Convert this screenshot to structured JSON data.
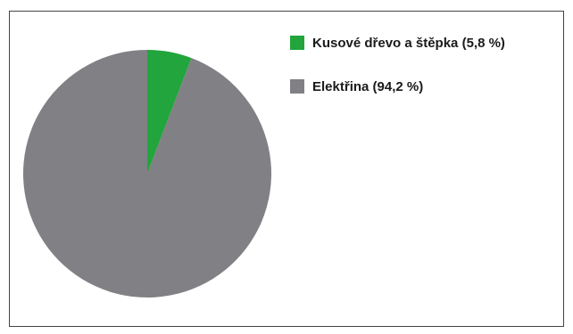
{
  "chart_data": {
    "type": "pie",
    "title": "",
    "series": [
      {
        "label": "Kusové dřevo a štěpka (5,8 %)",
        "value": 5.8,
        "color": "#22a53c"
      },
      {
        "label": "Elektřina (94,2 %)",
        "value": 94.2,
        "color": "#808085"
      }
    ],
    "legend_position": "top-right"
  }
}
